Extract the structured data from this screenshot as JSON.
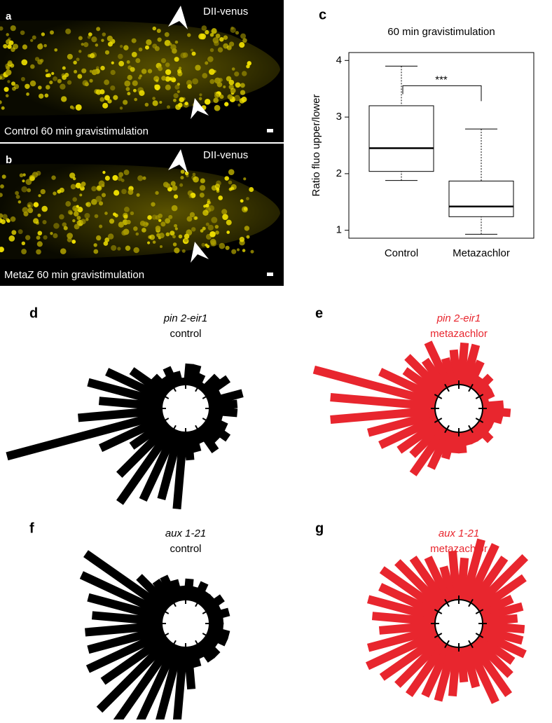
{
  "images": [
    {
      "label": "a",
      "marker": "DII-venus",
      "caption": "Control 60 min gravistimulation"
    },
    {
      "label": "b",
      "marker": "DII-venus",
      "caption": "MetaZ 60 min gravistimulation"
    }
  ],
  "chart_data": [
    {
      "type": "box",
      "label": "c",
      "title": "60 min gravistimulation",
      "ylabel": "Ratio fluo upper/lower",
      "categories": [
        "Control",
        "Metazachlor"
      ],
      "boxes": [
        {
          "whislo": 1.88,
          "q1": 2.04,
          "med": 2.45,
          "q3": 3.2,
          "whishi": 3.9
        },
        {
          "whislo": 0.93,
          "q1": 1.24,
          "med": 1.42,
          "q3": 1.87,
          "whishi": 2.79
        }
      ],
      "annotation": "***",
      "ylim": [
        0.86,
        4.14
      ],
      "yticks": [
        1,
        2,
        3,
        4
      ],
      "color": "#000000"
    },
    {
      "type": "polar-bar",
      "label": "d",
      "title": [
        "pin 2-eir1",
        "control"
      ],
      "color": "#000000",
      "x": [
        5,
        15,
        25,
        35,
        45,
        55,
        65,
        75,
        85,
        95,
        105,
        115,
        125,
        135,
        145,
        155,
        165,
        175,
        185,
        195,
        205,
        215,
        225,
        235,
        245,
        255,
        265,
        275,
        285,
        295,
        305,
        315,
        325,
        335,
        345,
        355
      ],
      "values": [
        4,
        5,
        2,
        4,
        3,
        1,
        2,
        3,
        3,
        1,
        2,
        3,
        2,
        3,
        6,
        9,
        11,
        9,
        12,
        23,
        10,
        6,
        10,
        13,
        11,
        10,
        11,
        4,
        3,
        2,
        4,
        3,
        4,
        3,
        2,
        4
      ]
    },
    {
      "type": "polar-bar",
      "label": "e",
      "title": [
        "pin 2-eir1",
        "metazachlor"
      ],
      "color": "#e8262e",
      "x": [
        5,
        15,
        25,
        35,
        45,
        55,
        65,
        75,
        85,
        95,
        105,
        115,
        125,
        135,
        145,
        155,
        165,
        175,
        185,
        195,
        205,
        215,
        225,
        235,
        245,
        255,
        265,
        275,
        285,
        295,
        305,
        315,
        325,
        335,
        345,
        355
      ],
      "values": [
        3,
        1,
        2,
        2,
        3,
        2,
        4,
        6,
        6,
        5,
        4,
        7,
        5,
        7,
        6,
        9,
        18,
        15,
        15,
        10,
        9,
        7,
        6,
        8,
        6,
        4,
        3,
        3,
        2,
        2,
        2,
        3,
        2,
        2,
        3,
        4
      ]
    },
    {
      "type": "polar-bar",
      "label": "f",
      "title": [
        "aux 1-21",
        "control"
      ],
      "color": "#000000",
      "x": [
        5,
        15,
        25,
        35,
        45,
        55,
        65,
        75,
        85,
        95,
        105,
        115,
        125,
        135,
        145,
        155,
        165,
        175,
        185,
        195,
        205,
        215,
        225,
        235,
        245,
        255,
        265,
        275,
        285,
        295,
        305,
        315,
        325,
        335,
        345,
        355
      ],
      "values": [
        2,
        3,
        2,
        3,
        2,
        2,
        3,
        2,
        3,
        2,
        3,
        4,
        4,
        6,
        14,
        13,
        11,
        10,
        11,
        11,
        12,
        11,
        14,
        14,
        13,
        12,
        13,
        6,
        3,
        2,
        3,
        3,
        2,
        3,
        3,
        2
      ]
    },
    {
      "type": "polar-bar",
      "label": "g",
      "title": [
        "aux 1-21",
        "metazachlor"
      ],
      "color": "#e8262e",
      "x": [
        5,
        15,
        25,
        35,
        45,
        55,
        65,
        75,
        85,
        95,
        105,
        115,
        125,
        135,
        145,
        155,
        165,
        175,
        185,
        195,
        205,
        215,
        225,
        235,
        245,
        255,
        265,
        275,
        285,
        295,
        305,
        315,
        325,
        335,
        345,
        355
      ],
      "values": [
        5,
        6,
        5,
        8,
        10,
        8,
        9,
        9,
        6,
        7,
        5,
        7,
        8,
        9,
        10,
        9,
        10,
        9,
        8,
        10,
        11,
        10,
        9,
        9,
        8,
        8,
        7,
        5,
        6,
        9,
        9,
        7,
        6,
        7,
        6,
        6
      ]
    }
  ]
}
